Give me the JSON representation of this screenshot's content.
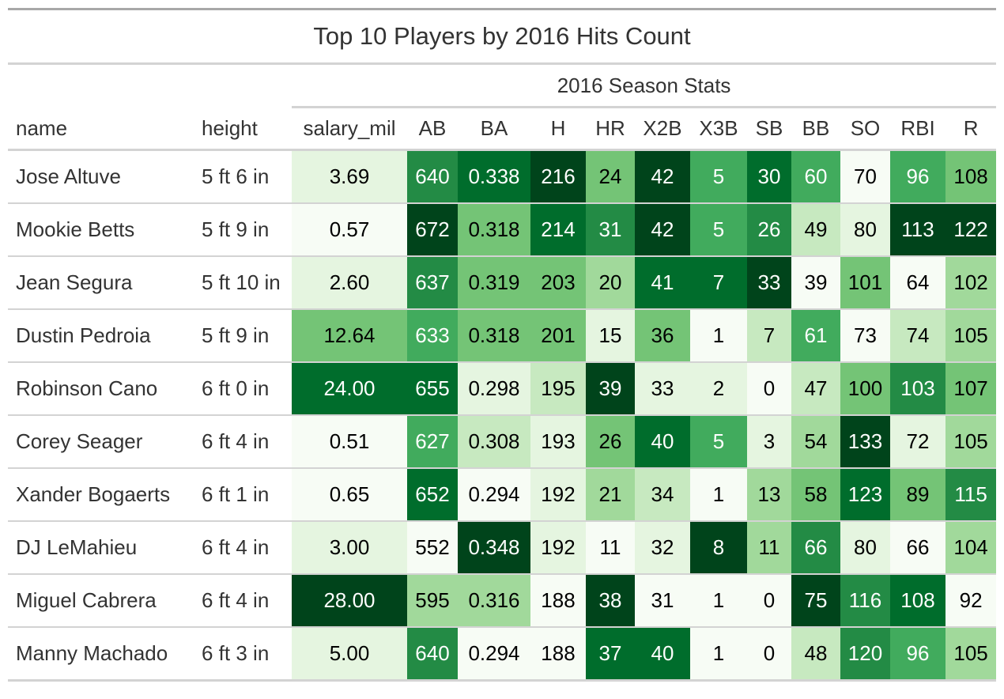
{
  "chart_data": {
    "type": "table",
    "title": "Top 10 Players by 2016 Hits Count",
    "spanner_label": "2016 Season Stats",
    "columns": [
      "name",
      "height",
      "salary_mil",
      "AB",
      "BA",
      "H",
      "HR",
      "X2B",
      "X3B",
      "SB",
      "BB",
      "SO",
      "RBI",
      "R"
    ],
    "rows": [
      {
        "name": "Jose Altuve",
        "height": "5 ft 6 in",
        "salary_mil": "3.69",
        "AB": 640,
        "BA": "0.338",
        "H": 216,
        "HR": 24,
        "X2B": 42,
        "X3B": 5,
        "SB": 30,
        "BB": 60,
        "SO": 70,
        "RBI": 96,
        "R": 108
      },
      {
        "name": "Mookie Betts",
        "height": "5 ft 9 in",
        "salary_mil": "0.57",
        "AB": 672,
        "BA": "0.318",
        "H": 214,
        "HR": 31,
        "X2B": 42,
        "X3B": 5,
        "SB": 26,
        "BB": 49,
        "SO": 80,
        "RBI": 113,
        "R": 122
      },
      {
        "name": "Jean Segura",
        "height": "5 ft 10 in",
        "salary_mil": "2.60",
        "AB": 637,
        "BA": "0.319",
        "H": 203,
        "HR": 20,
        "X2B": 41,
        "X3B": 7,
        "SB": 33,
        "BB": 39,
        "SO": 101,
        "RBI": 64,
        "R": 102
      },
      {
        "name": "Dustin Pedroia",
        "height": "5 ft 9 in",
        "salary_mil": "12.64",
        "AB": 633,
        "BA": "0.318",
        "H": 201,
        "HR": 15,
        "X2B": 36,
        "X3B": 1,
        "SB": 7,
        "BB": 61,
        "SO": 73,
        "RBI": 74,
        "R": 105
      },
      {
        "name": "Robinson Cano",
        "height": "6 ft 0 in",
        "salary_mil": "24.00",
        "AB": 655,
        "BA": "0.298",
        "H": 195,
        "HR": 39,
        "X2B": 33,
        "X3B": 2,
        "SB": 0,
        "BB": 47,
        "SO": 100,
        "RBI": 103,
        "R": 107
      },
      {
        "name": "Corey Seager",
        "height": "6 ft 4 in",
        "salary_mil": "0.51",
        "AB": 627,
        "BA": "0.308",
        "H": 193,
        "HR": 26,
        "X2B": 40,
        "X3B": 5,
        "SB": 3,
        "BB": 54,
        "SO": 133,
        "RBI": 72,
        "R": 105
      },
      {
        "name": "Xander Bogaerts",
        "height": "6 ft 1 in",
        "salary_mil": "0.65",
        "AB": 652,
        "BA": "0.294",
        "H": 192,
        "HR": 21,
        "X2B": 34,
        "X3B": 1,
        "SB": 13,
        "BB": 58,
        "SO": 123,
        "RBI": 89,
        "R": 115
      },
      {
        "name": "DJ LeMahieu",
        "height": "6 ft 4 in",
        "salary_mil": "3.00",
        "AB": 552,
        "BA": "0.348",
        "H": 192,
        "HR": 11,
        "X2B": 32,
        "X3B": 8,
        "SB": 11,
        "BB": 66,
        "SO": 80,
        "RBI": 66,
        "R": 104
      },
      {
        "name": "Miguel Cabrera",
        "height": "6 ft 4 in",
        "salary_mil": "28.00",
        "AB": 595,
        "BA": "0.316",
        "H": 188,
        "HR": 38,
        "X2B": 31,
        "X3B": 1,
        "SB": 0,
        "BB": 75,
        "SO": 116,
        "RBI": 108,
        "R": 92
      },
      {
        "name": "Manny Machado",
        "height": "6 ft 3 in",
        "salary_mil": "5.00",
        "AB": 640,
        "BA": "0.294",
        "H": 188,
        "HR": 37,
        "X2B": 40,
        "X3B": 1,
        "SB": 0,
        "BB": 48,
        "SO": 120,
        "RBI": 96,
        "R": 105
      }
    ],
    "color_scale": {
      "palette": "Greens",
      "colors": [
        "#f7fcf5",
        "#e5f5e0",
        "#c7e9c0",
        "#a1d99b",
        "#74c476",
        "#41ab5d",
        "#238b45",
        "#006d2c",
        "#00441b"
      ],
      "text_light": "#ffffff",
      "text_dark": "#000000"
    }
  }
}
